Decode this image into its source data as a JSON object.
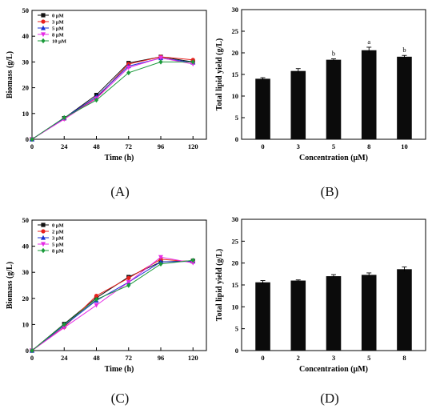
{
  "colors": {
    "axis": "#000000",
    "bar": "#0b0b0b",
    "series": [
      "#111111",
      "#e8201e",
      "#1c2fd6",
      "#e52de5",
      "#1a9a3a"
    ]
  },
  "panels": [
    {
      "label": "(A)"
    },
    {
      "label": "(B)"
    },
    {
      "label": "(C)"
    },
    {
      "label": "(D)"
    }
  ],
  "chart_data": [
    {
      "id": "A",
      "type": "line",
      "xlabel": "Time (h)",
      "ylabel": "Biomass (g/L)",
      "x": [
        0,
        24,
        48,
        72,
        96,
        120
      ],
      "xlim": [
        0,
        130
      ],
      "ylim": [
        0,
        50
      ],
      "xticks": [
        0,
        24,
        48,
        72,
        96,
        120
      ],
      "yticks": [
        0,
        10,
        20,
        30,
        40,
        50
      ],
      "legend_position": "top-left",
      "series": [
        {
          "name": "0 μM",
          "marker": "square",
          "values": [
            0,
            8.2,
            17.2,
            29.6,
            32.0,
            30.0
          ]
        },
        {
          "name": "3 μM",
          "marker": "circle",
          "values": [
            0,
            8.0,
            16.0,
            29.2,
            32.0,
            30.8
          ]
        },
        {
          "name": "5 μM",
          "marker": "triangle",
          "values": [
            0,
            8.2,
            16.5,
            28.4,
            31.5,
            29.8
          ]
        },
        {
          "name": "8 μM",
          "marker": "triangle-down",
          "values": [
            0,
            7.8,
            15.8,
            27.8,
            31.6,
            29.2
          ]
        },
        {
          "name": "10 μM",
          "marker": "diamond",
          "values": [
            0,
            8.4,
            15.2,
            25.8,
            30.0,
            30.0
          ]
        }
      ]
    },
    {
      "id": "B",
      "type": "bar",
      "xlabel": "Concentration (μM)",
      "ylabel": "Total lipid yield (g/L)",
      "categories": [
        "0",
        "3",
        "5",
        "8",
        "10"
      ],
      "values": [
        14.0,
        15.8,
        18.4,
        20.6,
        19.1
      ],
      "errors": [
        0.25,
        0.55,
        0.2,
        0.7,
        0.3
      ],
      "annotations": [
        "",
        "",
        "b",
        "a",
        "b"
      ],
      "ylim": [
        0,
        30
      ],
      "yticks": [
        0,
        5,
        10,
        15,
        20,
        25,
        30
      ]
    },
    {
      "id": "C",
      "type": "line",
      "xlabel": "Time (h)",
      "ylabel": "Biomass (g/L)",
      "x": [
        0,
        24,
        48,
        72,
        96,
        120
      ],
      "xlim": [
        0,
        130
      ],
      "ylim": [
        0,
        50
      ],
      "xticks": [
        0,
        24,
        48,
        72,
        96,
        120
      ],
      "yticks": [
        0,
        10,
        20,
        30,
        40,
        50
      ],
      "legend_position": "top-left",
      "series": [
        {
          "name": "0 μM",
          "marker": "square",
          "values": [
            0,
            10.2,
            20.2,
            28.2,
            34.0,
            34.4
          ]
        },
        {
          "name": "2 μM",
          "marker": "circle",
          "values": [
            0,
            9.0,
            21.0,
            27.8,
            35.0,
            34.0
          ]
        },
        {
          "name": "3 μM",
          "marker": "triangle",
          "values": [
            0,
            9.6,
            19.2,
            26.2,
            34.0,
            34.2
          ]
        },
        {
          "name": "5 μM",
          "marker": "triangle-down",
          "values": [
            0,
            8.8,
            17.4,
            26.2,
            35.8,
            33.6
          ]
        },
        {
          "name": "8 μM",
          "marker": "diamond",
          "values": [
            0,
            10.0,
            19.6,
            25.0,
            33.2,
            34.6
          ]
        }
      ]
    },
    {
      "id": "D",
      "type": "bar",
      "xlabel": "Concentration (μM)",
      "ylabel": "Total lipid yield (g/L)",
      "categories": [
        "0",
        "2",
        "3",
        "5",
        "8"
      ],
      "values": [
        15.6,
        16.0,
        17.0,
        17.3,
        18.6
      ],
      "errors": [
        0.4,
        0.15,
        0.35,
        0.45,
        0.5
      ],
      "annotations": [
        "",
        "",
        "",
        "",
        ""
      ],
      "ylim": [
        0,
        30
      ],
      "yticks": [
        0,
        5,
        10,
        15,
        20,
        25,
        30
      ]
    }
  ]
}
